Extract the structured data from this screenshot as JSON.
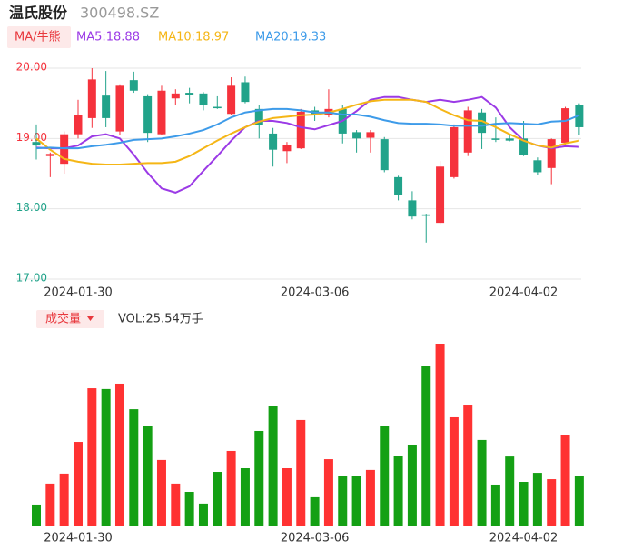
{
  "header": {
    "name": "温氏股份",
    "code": "300498.SZ"
  },
  "chart_data": [
    {
      "type": "candlestick",
      "legend_title": "MA/牛熊",
      "categories": [
        null,
        null,
        null,
        "2024-01-30",
        null,
        null,
        null,
        null,
        null,
        null,
        null,
        null,
        null,
        null,
        null,
        null,
        null,
        null,
        null,
        null,
        "2024-03-06",
        null,
        null,
        null,
        null,
        null,
        null,
        null,
        null,
        null,
        null,
        null,
        null,
        null,
        null,
        "2024-04-02",
        null,
        null,
        null,
        null
      ],
      "open": [
        18.95,
        18.75,
        18.64,
        19.06,
        19.29,
        19.61,
        19.1,
        19.83,
        19.6,
        19.06,
        19.57,
        19.65,
        19.64,
        19.45,
        19.35,
        19.8,
        19.42,
        19.07,
        18.82,
        18.86,
        19.4,
        19.34,
        19.42,
        19.09,
        19.01,
        18.99,
        18.45,
        18.12,
        17.92,
        17.8,
        18.45,
        18.8,
        19.37,
        19.0,
        19.0,
        19.0,
        18.69,
        18.58,
        18.94,
        19.48
      ],
      "high": [
        19.2,
        18.8,
        19.1,
        19.55,
        20.0,
        19.96,
        19.77,
        19.95,
        19.63,
        19.75,
        19.7,
        19.72,
        19.66,
        19.6,
        19.87,
        19.88,
        19.48,
        19.15,
        18.95,
        19.42,
        19.45,
        19.7,
        19.48,
        19.12,
        19.12,
        19.02,
        18.47,
        18.25,
        17.93,
        18.68,
        19.2,
        19.45,
        19.42,
        19.3,
        19.06,
        19.25,
        18.73,
        19.0,
        19.45,
        19.5
      ],
      "low": [
        18.7,
        18.45,
        18.5,
        19.0,
        19.15,
        19.16,
        19.05,
        19.65,
        18.95,
        19.05,
        19.48,
        19.5,
        19.4,
        19.42,
        19.33,
        19.5,
        19.0,
        18.6,
        18.65,
        18.85,
        19.25,
        19.3,
        18.93,
        18.8,
        18.8,
        18.52,
        18.12,
        17.85,
        17.52,
        17.78,
        18.43,
        18.75,
        18.85,
        18.95,
        18.96,
        18.75,
        18.48,
        18.35,
        18.9,
        19.05
      ],
      "close": [
        18.9,
        18.78,
        19.06,
        19.33,
        19.84,
        19.29,
        19.75,
        19.68,
        19.08,
        19.68,
        19.64,
        19.62,
        19.48,
        19.43,
        19.75,
        19.52,
        19.19,
        18.84,
        18.91,
        19.38,
        19.33,
        19.42,
        19.07,
        19.0,
        19.09,
        18.55,
        18.19,
        17.89,
        17.9,
        18.6,
        19.16,
        19.4,
        19.08,
        18.98,
        18.97,
        18.76,
        18.52,
        18.99,
        19.43,
        19.16
      ],
      "up_color": "#f5323c",
      "down_color": "#21a38a",
      "series": [
        {
          "name": "MA5",
          "label": "MA5:18.88",
          "color": "#9b3ae6",
          "values": [
            18.87,
            18.86,
            18.86,
            18.9,
            19.03,
            19.06,
            19.0,
            18.77,
            18.51,
            18.29,
            18.23,
            18.32,
            18.54,
            18.75,
            18.97,
            19.16,
            19.25,
            19.25,
            19.22,
            19.16,
            19.13,
            19.19,
            19.25,
            19.39,
            19.55,
            19.59,
            19.59,
            19.55,
            19.52,
            19.55,
            19.52,
            19.55,
            19.59,
            19.44,
            19.16,
            18.97,
            18.9,
            18.86,
            18.89,
            18.88
          ]
        },
        {
          "name": "MA10",
          "label": "MA10:18.97",
          "color": "#f5b616",
          "values": [
            19.0,
            18.84,
            18.71,
            18.67,
            18.64,
            18.63,
            18.63,
            18.64,
            18.65,
            18.65,
            18.67,
            18.75,
            18.86,
            18.97,
            19.07,
            19.16,
            19.24,
            19.29,
            19.31,
            19.33,
            19.34,
            19.37,
            19.42,
            19.48,
            19.53,
            19.55,
            19.55,
            19.55,
            19.52,
            19.42,
            19.33,
            19.26,
            19.25,
            19.16,
            19.06,
            18.97,
            18.9,
            18.87,
            18.93,
            18.97
          ]
        },
        {
          "name": "MA20",
          "label": "MA20:19.33",
          "color": "#3d9be9",
          "values": [
            18.86,
            18.87,
            18.86,
            18.86,
            18.89,
            18.91,
            18.94,
            18.98,
            18.99,
            19.0,
            19.03,
            19.07,
            19.12,
            19.2,
            19.3,
            19.37,
            19.4,
            19.42,
            19.42,
            19.4,
            19.37,
            19.37,
            19.34,
            19.34,
            19.31,
            19.26,
            19.22,
            19.21,
            19.21,
            19.2,
            19.18,
            19.18,
            19.18,
            19.21,
            19.22,
            19.21,
            19.2,
            19.24,
            19.25,
            19.33
          ]
        }
      ],
      "ylim": [
        17,
        20
      ],
      "yticks": [
        {
          "value": 17,
          "label": "17.00"
        },
        {
          "value": 18,
          "label": "18.00"
        },
        {
          "value": 19,
          "label": "19.00"
        },
        {
          "value": 20,
          "label": "20.00"
        }
      ],
      "ytick_colors": [
        "#21a38a",
        "#21a38a",
        "#f5323c",
        "#f5323c"
      ],
      "grid": true
    },
    {
      "type": "bar",
      "title": "成交量",
      "label": "VOL:25.54万手",
      "categories": [
        null,
        null,
        null,
        "2024-01-30",
        null,
        null,
        null,
        null,
        null,
        null,
        null,
        null,
        null,
        null,
        null,
        null,
        null,
        null,
        null,
        null,
        "2024-03-06",
        null,
        null,
        null,
        null,
        null,
        null,
        null,
        null,
        null,
        null,
        null,
        null,
        null,
        null,
        "2024-04-02",
        null,
        null,
        null,
        null
      ],
      "values": [
        10.9,
        21.8,
        27.0,
        43.5,
        71.4,
        71.0,
        73.8,
        60.5,
        51.6,
        34.1,
        21.8,
        17.5,
        11.4,
        27.9,
        38.8,
        29.8,
        49.2,
        62.0,
        29.8,
        54.9,
        14.7,
        34.5,
        26.0,
        26.0,
        28.9,
        51.6,
        36.4,
        42.1,
        82.8,
        94.6,
        56.3,
        62.9,
        44.5,
        21.3,
        35.9,
        22.7,
        27.4,
        24.1,
        47.3,
        25.54
      ],
      "up_color": "#ff3232",
      "down_color": "#14a014"
    }
  ]
}
